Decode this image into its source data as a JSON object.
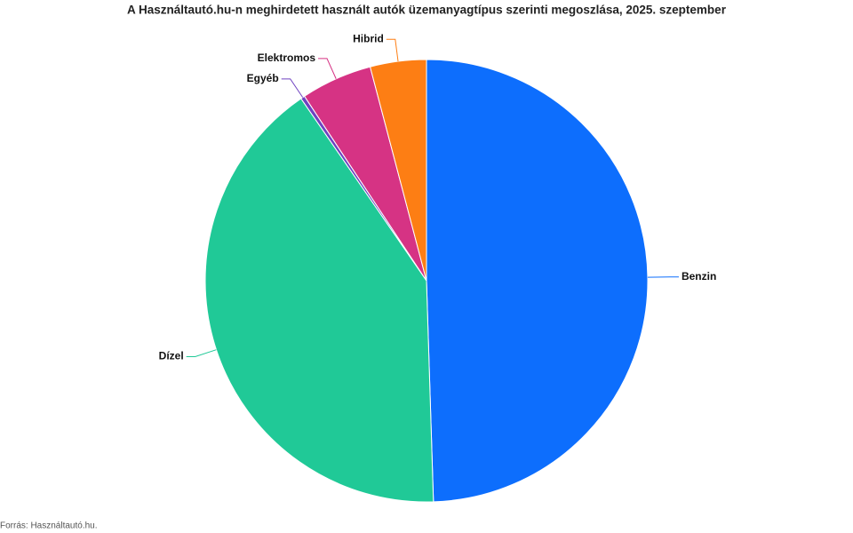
{
  "chart_data": {
    "type": "pie",
    "title": "A Használtautó.hu-n meghirdetett használt autók üzemanyagtípus szerinti megoszlása, 2025. szeptember",
    "categories": [
      "Benzin",
      "Dízel",
      "Egyéb",
      "Elektromos",
      "Hibrid"
    ],
    "values": [
      49.5,
      40.9,
      0.3,
      5.2,
      4.1
    ],
    "colors": [
      "#0d6efd",
      "#20c997",
      "#6f42c1",
      "#d63384",
      "#fd7e14"
    ],
    "source": "Forrás: Használtautó.hu."
  }
}
